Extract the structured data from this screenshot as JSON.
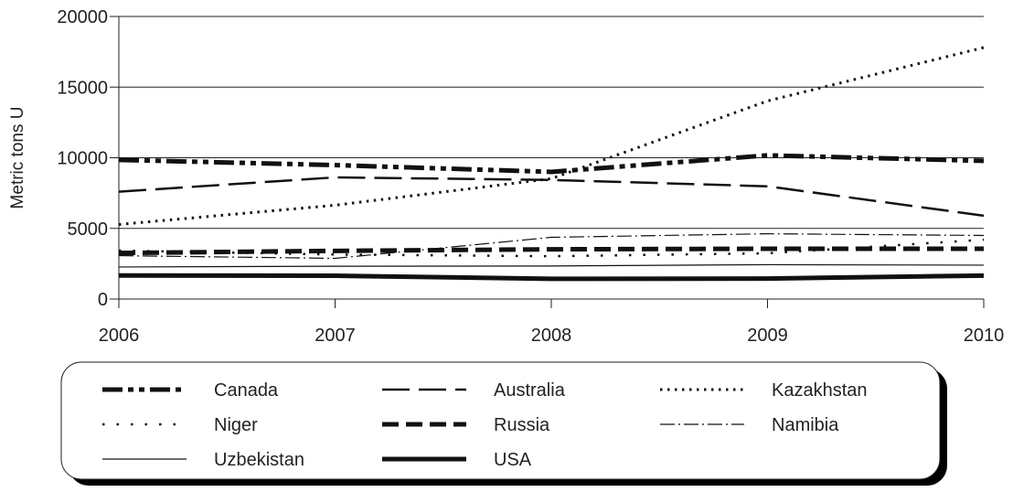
{
  "chart_data": {
    "type": "line",
    "title": "",
    "xlabel": "",
    "ylabel": "Metric tons U",
    "x": [
      2006,
      2007,
      2008,
      2009,
      2010
    ],
    "xlim": [
      2006,
      2010
    ],
    "ylim": [
      0,
      20000
    ],
    "yticks": [
      0,
      5000,
      10000,
      15000,
      20000
    ],
    "grid": "horizontal",
    "legend": "bottom",
    "series": [
      {
        "name": "Canada",
        "values": [
          9850,
          9480,
          9000,
          10170,
          9780
        ],
        "style": "dashdotdot-heavy"
      },
      {
        "name": "Australia",
        "values": [
          7600,
          8610,
          8430,
          7980,
          5900
        ],
        "style": "longdash"
      },
      {
        "name": "Kazakhstan",
        "values": [
          5280,
          6640,
          8520,
          14020,
          17800
        ],
        "style": "dotted-heavy"
      },
      {
        "name": "Niger",
        "values": [
          3430,
          3150,
          3030,
          3240,
          4200
        ],
        "style": "dotted-sparse"
      },
      {
        "name": "Russia",
        "values": [
          3260,
          3410,
          3520,
          3560,
          3560
        ],
        "style": "dashed-heavy"
      },
      {
        "name": "Namibia",
        "values": [
          3070,
          2880,
          4370,
          4620,
          4500
        ],
        "style": "dashdot-thin"
      },
      {
        "name": "Uzbekistan",
        "values": [
          2270,
          2320,
          2340,
          2430,
          2400
        ],
        "style": "solid-thin"
      },
      {
        "name": "USA",
        "values": [
          1670,
          1650,
          1430,
          1450,
          1660
        ],
        "style": "solid-heavy"
      }
    ]
  }
}
